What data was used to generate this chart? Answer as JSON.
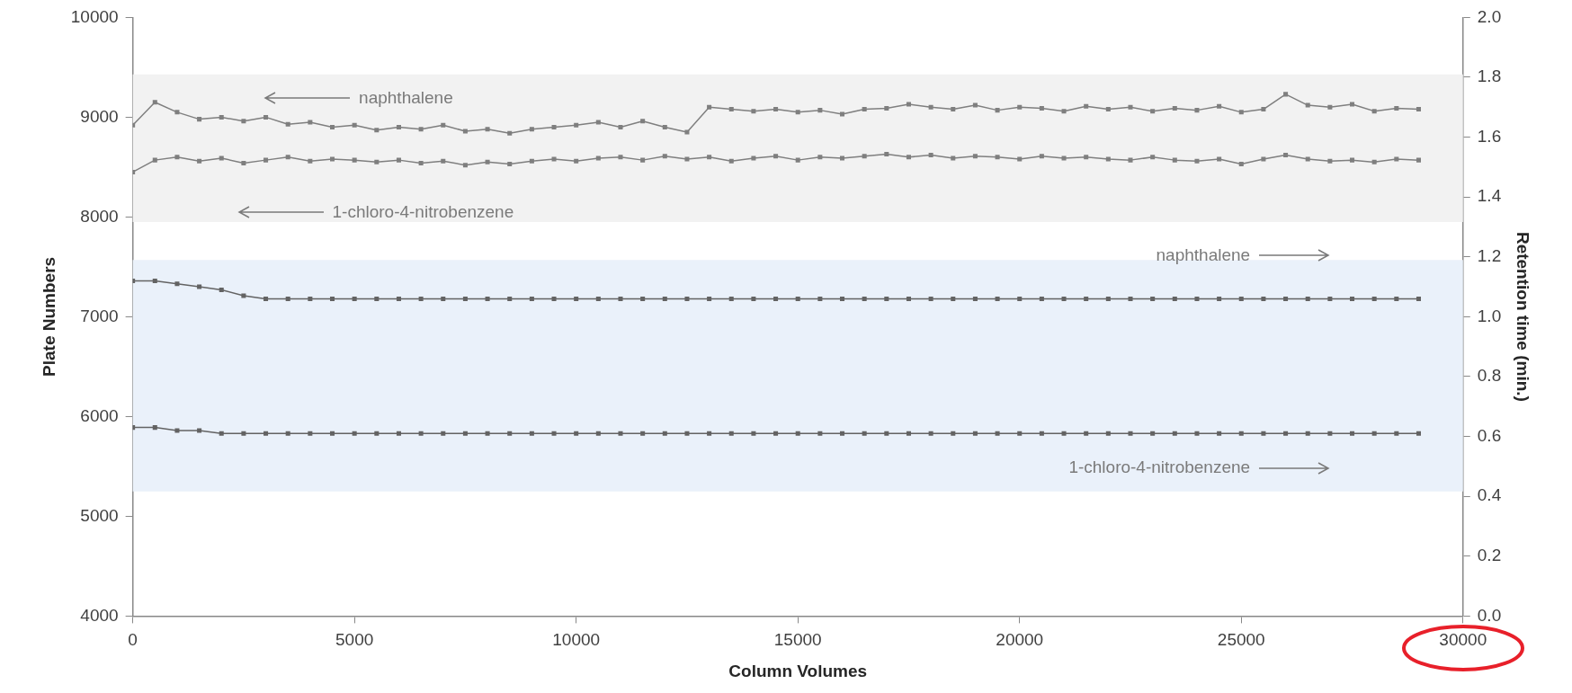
{
  "chart_data": {
    "type": "line",
    "xlabel": "Column Volumes",
    "ylabel": "Plate Numbers",
    "y2label": "Retention time (min.)",
    "x": [
      0,
      500,
      1000,
      1500,
      2000,
      2500,
      3000,
      3500,
      4000,
      4500,
      5000,
      5500,
      6000,
      6500,
      7000,
      7500,
      8000,
      8500,
      9000,
      9500,
      10000,
      10500,
      11000,
      11500,
      12000,
      12500,
      13000,
      13500,
      14000,
      14500,
      15000,
      15500,
      16000,
      16500,
      17000,
      17500,
      18000,
      18500,
      19000,
      19500,
      20000,
      20500,
      21000,
      21500,
      22000,
      22500,
      23000,
      23500,
      24000,
      24500,
      25000,
      25500,
      26000,
      26500,
      27000,
      27500,
      28000,
      28500,
      29000
    ],
    "series": [
      {
        "color": "#7f7f7f",
        "values": [
          8920,
          9150,
          9050,
          8980,
          9000,
          8960,
          9000,
          8930,
          8950,
          8900,
          8920,
          8870,
          8900,
          8880,
          8920,
          8860,
          8880,
          8840,
          8880,
          8900,
          8920,
          8950,
          8900,
          8960,
          8900,
          8850,
          9100,
          9080,
          9060,
          9080,
          9050,
          9070,
          9030,
          9080,
          9090,
          9130,
          9100,
          9080,
          9120,
          9070,
          9100,
          9090,
          9060,
          9110,
          9080,
          9100,
          9060,
          9090,
          9070,
          9110,
          9050,
          9080,
          9230,
          9120,
          9100,
          9130,
          9060,
          9090,
          9080
        ]
      },
      {
        "color": "#7f7f7f",
        "values": [
          8450,
          8570,
          8600,
          8560,
          8590,
          8540,
          8570,
          8600,
          8560,
          8580,
          8570,
          8550,
          8570,
          8540,
          8560,
          8520,
          8550,
          8530,
          8560,
          8580,
          8560,
          8590,
          8600,
          8570,
          8610,
          8580,
          8600,
          8560,
          8590,
          8610,
          8570,
          8600,
          8590,
          8610,
          8630,
          8600,
          8620,
          8590,
          8610,
          8600,
          8580,
          8610,
          8590,
          8600,
          8580,
          8570,
          8600,
          8570,
          8560,
          8580,
          8530,
          8580,
          8620,
          8580,
          8560,
          8570,
          8550,
          8580,
          8570
        ]
      },
      {
        "color": "#636363",
        "axis": "y2",
        "values": [
          1.12,
          1.12,
          1.11,
          1.1,
          1.09,
          1.07,
          1.06,
          1.06,
          1.06,
          1.06,
          1.06,
          1.06,
          1.06,
          1.06,
          1.06,
          1.06,
          1.06,
          1.06,
          1.06,
          1.06,
          1.06,
          1.06,
          1.06,
          1.06,
          1.06,
          1.06,
          1.06,
          1.06,
          1.06,
          1.06,
          1.06,
          1.06,
          1.06,
          1.06,
          1.06,
          1.06,
          1.06,
          1.06,
          1.06,
          1.06,
          1.06,
          1.06,
          1.06,
          1.06,
          1.06,
          1.06,
          1.06,
          1.06,
          1.06,
          1.06,
          1.06,
          1.06,
          1.06,
          1.06,
          1.06,
          1.06,
          1.06,
          1.06,
          1.06
        ]
      },
      {
        "color": "#636363",
        "axis": "y2",
        "values": [
          0.63,
          0.63,
          0.62,
          0.62,
          0.61,
          0.61,
          0.61,
          0.61,
          0.61,
          0.61,
          0.61,
          0.61,
          0.61,
          0.61,
          0.61,
          0.61,
          0.61,
          0.61,
          0.61,
          0.61,
          0.61,
          0.61,
          0.61,
          0.61,
          0.61,
          0.61,
          0.61,
          0.61,
          0.61,
          0.61,
          0.61,
          0.61,
          0.61,
          0.61,
          0.61,
          0.61,
          0.61,
          0.61,
          0.61,
          0.61,
          0.61,
          0.61,
          0.61,
          0.61,
          0.61,
          0.61,
          0.61,
          0.61,
          0.61,
          0.61,
          0.61,
          0.61,
          0.61,
          0.61,
          0.61,
          0.61,
          0.61,
          0.61,
          0.61
        ]
      }
    ],
    "marker": "square",
    "xlim": [
      0,
      30000
    ],
    "xticks": [
      0,
      5000,
      10000,
      15000,
      20000,
      25000,
      30000
    ],
    "ylim": [
      4000,
      10000
    ],
    "yticks": [
      4000,
      5000,
      6000,
      7000,
      8000,
      9000,
      10000
    ],
    "y2lim": [
      0,
      2
    ],
    "y2ticks": [
      {
        "value": 0,
        "label": "0.0"
      },
      {
        "value": 0.2,
        "label": "0.2"
      },
      {
        "value": 0.4,
        "label": "0.4"
      },
      {
        "value": 0.6,
        "label": "0.6"
      },
      {
        "value": 0.8,
        "label": "0.8"
      },
      {
        "value": 1,
        "label": "1.0"
      },
      {
        "value": 1.2,
        "label": "1.2"
      },
      {
        "value": 1.4,
        "label": "1.4"
      },
      {
        "value": 1.6,
        "label": "1.6"
      },
      {
        "value": 1.8,
        "label": "1.8"
      },
      {
        "value": 2,
        "label": "2.0"
      }
    ],
    "bands": [
      {
        "axis": "y",
        "from": 7950,
        "to": 9430,
        "color": "#f2f2f2"
      },
      {
        "axis": "y",
        "from": 5250,
        "to": 7570,
        "color": "#eaf1fa"
      }
    ],
    "annotations": [
      "naphthalene",
      "1-chloro-4-nitrobenzene",
      "naphthalene",
      "1-chloro-4-nitrobenzene"
    ]
  }
}
